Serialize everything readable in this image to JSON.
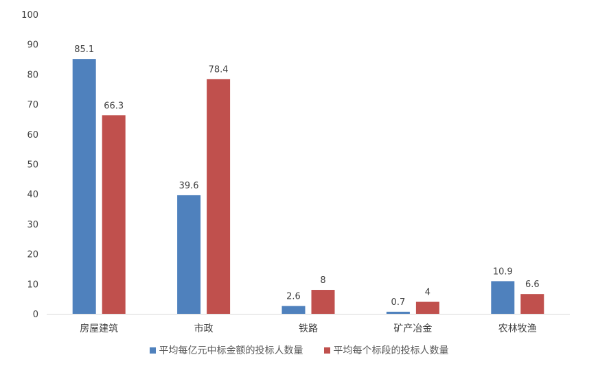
{
  "chart_data": {
    "type": "bar",
    "categories": [
      "房屋建筑",
      "市政",
      "铁路",
      "矿产冶金",
      "农林牧渔"
    ],
    "series": [
      {
        "name": "平均每亿元中标金额的投标人数量",
        "values": [
          85.1,
          39.6,
          2.6,
          0.7,
          10.9
        ],
        "labels": [
          "85.1",
          "39.6",
          "2.6",
          "0.7",
          "10.9"
        ],
        "color": "#4F81BD"
      },
      {
        "name": "平均每个标段的投标人数量",
        "values": [
          66.3,
          78.4,
          8,
          4,
          6.6
        ],
        "labels": [
          "66.3",
          "78.4",
          "8",
          "4",
          "6.6"
        ],
        "color": "#C0504D"
      }
    ],
    "ylim": [
      0,
      100
    ],
    "yticks": [
      "0",
      "10",
      "20",
      "30",
      "40",
      "50",
      "60",
      "70",
      "80",
      "90",
      "100"
    ],
    "grid": false,
    "legend": "bottom",
    "title": "",
    "xlabel": "",
    "ylabel": ""
  }
}
